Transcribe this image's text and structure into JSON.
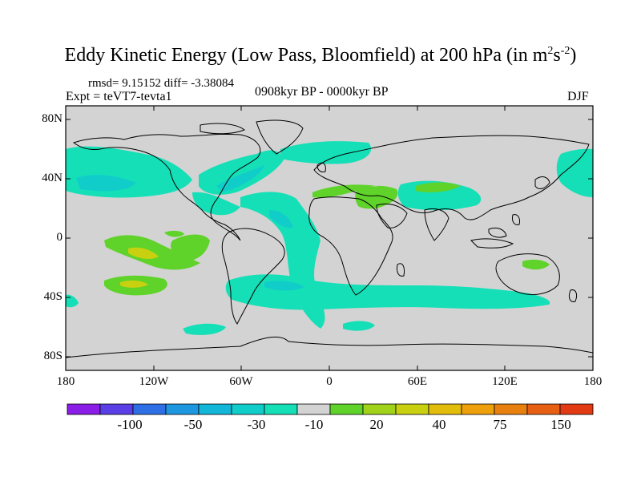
{
  "title_main": "Eddy Kinetic Energy (Low Pass, Bloomfield) at 200 hPa (in m",
  "title_sup1": "2",
  "title_mid": "s",
  "title_sup2": "-2",
  "title_end": ")",
  "stats": "rmsd= 9.15152 diff= -3.38084",
  "experiment": "Expt = teVT7-tevta1",
  "period": "0908kyr BP - 0000kyr BP",
  "season": "DJF",
  "lat_ticks": [
    "80N",
    "40N",
    "0",
    "40S",
    "80S"
  ],
  "lon_ticks": [
    "180",
    "120W",
    "60W",
    "0",
    "60E",
    "120E",
    "180"
  ],
  "colorbar": {
    "colors": [
      "#8a1ee6",
      "#5a3ee6",
      "#2f6fe6",
      "#1d97df",
      "#12b6d8",
      "#11cdca",
      "#15dfb7",
      "#d3d3d3",
      "#5fd32a",
      "#a0d21a",
      "#c8d010",
      "#e2bd0c",
      "#eda00c",
      "#e8800f",
      "#e65f12",
      "#e23a12"
    ],
    "labels": [
      "-100",
      "-50",
      "-30",
      "-10",
      "20",
      "40",
      "75",
      "150"
    ]
  },
  "map": {
    "ocean_background": "#d3d3d3",
    "coastline_color": "#000000"
  }
}
